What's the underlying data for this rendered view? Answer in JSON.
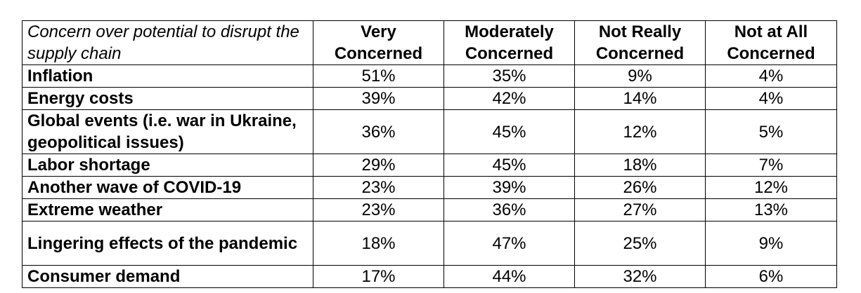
{
  "table": {
    "corner_label": "Concern over potential to disrupt the supply chain",
    "columns": [
      "Very Concerned",
      "Moderately Concerned",
      "Not Really Concerned",
      "Not at All Concerned"
    ],
    "rows": [
      {
        "label": "Inflation",
        "values": [
          "51%",
          "35%",
          "9%",
          "4%"
        ]
      },
      {
        "label": "Energy costs",
        "values": [
          "39%",
          "42%",
          "14%",
          "4%"
        ]
      },
      {
        "label": "Global events (i.e. war in Ukraine, geopolitical issues)",
        "values": [
          "36%",
          "45%",
          "12%",
          "5%"
        ]
      },
      {
        "label": "Labor shortage",
        "values": [
          "29%",
          "45%",
          "18%",
          "7%"
        ]
      },
      {
        "label": "Another wave of COVID-19",
        "values": [
          "23%",
          "39%",
          "26%",
          "12%"
        ]
      },
      {
        "label": "Extreme weather",
        "values": [
          "23%",
          "36%",
          "27%",
          "13%"
        ]
      },
      {
        "label": "Lingering effects of the pandemic",
        "values": [
          "18%",
          "47%",
          "25%",
          "9%"
        ]
      },
      {
        "label": "Consumer demand",
        "values": [
          "17%",
          "44%",
          "32%",
          "6%"
        ]
      }
    ]
  }
}
